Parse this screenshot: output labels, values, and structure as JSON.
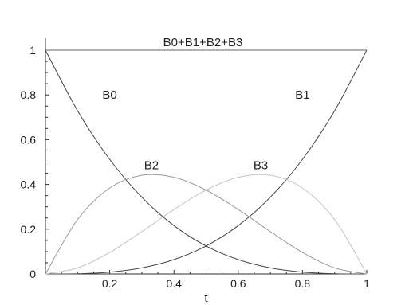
{
  "chart_data": {
    "type": "line",
    "xlabel": "t",
    "ylabel": "",
    "xlim": [
      0,
      1
    ],
    "ylim": [
      0,
      1
    ],
    "grid": false,
    "x_ticks": [
      {
        "value": 0.2,
        "label": "0.2"
      },
      {
        "value": 0.4,
        "label": "0.4"
      },
      {
        "value": 0.6,
        "label": "0.6"
      },
      {
        "value": 0.8,
        "label": "0.8"
      },
      {
        "value": 1,
        "label": "1"
      }
    ],
    "y_ticks": [
      {
        "value": 0,
        "label": "0"
      },
      {
        "value": 0.2,
        "label": "0.2"
      },
      {
        "value": 0.4,
        "label": "0.4"
      },
      {
        "value": 0.6,
        "label": "0.6"
      },
      {
        "value": 0.8,
        "label": "0.8"
      },
      {
        "value": 1,
        "label": "1"
      }
    ],
    "x": [
      0,
      0.1,
      0.2,
      0.3,
      0.4,
      0.5,
      0.6,
      0.7,
      0.8,
      0.9,
      1
    ],
    "series": [
      {
        "name": "B0",
        "color": "#444444",
        "values": [
          1,
          0.729,
          0.512,
          0.343,
          0.216,
          0.125,
          0.064,
          0.027,
          0.008,
          0.001,
          0
        ]
      },
      {
        "name": "B1",
        "color": "#444444",
        "values": [
          0,
          0.001,
          0.008,
          0.027,
          0.064,
          0.125,
          0.216,
          0.343,
          0.512,
          0.729,
          1
        ]
      },
      {
        "name": "B2",
        "color": "#9a9a9a",
        "values": [
          0,
          0.243,
          0.384,
          0.441,
          0.432,
          0.375,
          0.288,
          0.189,
          0.096,
          0.027,
          0
        ]
      },
      {
        "name": "B3",
        "color": "#c4c4c4",
        "values": [
          0,
          0.027,
          0.096,
          0.189,
          0.288,
          0.375,
          0.432,
          0.441,
          0.384,
          0.243,
          0
        ]
      },
      {
        "name": "B0+B1+B2+B3",
        "color": "#666666",
        "values": [
          1,
          1,
          1,
          1,
          1,
          1,
          1,
          1,
          1,
          1,
          1
        ]
      }
    ],
    "annotations": [
      {
        "text": "B0+B1+B2+B3",
        "x": 0.49,
        "y": 1.035
      },
      {
        "text": "B0",
        "x": 0.2,
        "y": 0.8
      },
      {
        "text": "B1",
        "x": 0.8,
        "y": 0.8
      },
      {
        "text": "B2",
        "x": 0.33,
        "y": 0.485
      },
      {
        "text": "B3",
        "x": 0.67,
        "y": 0.485
      }
    ]
  }
}
